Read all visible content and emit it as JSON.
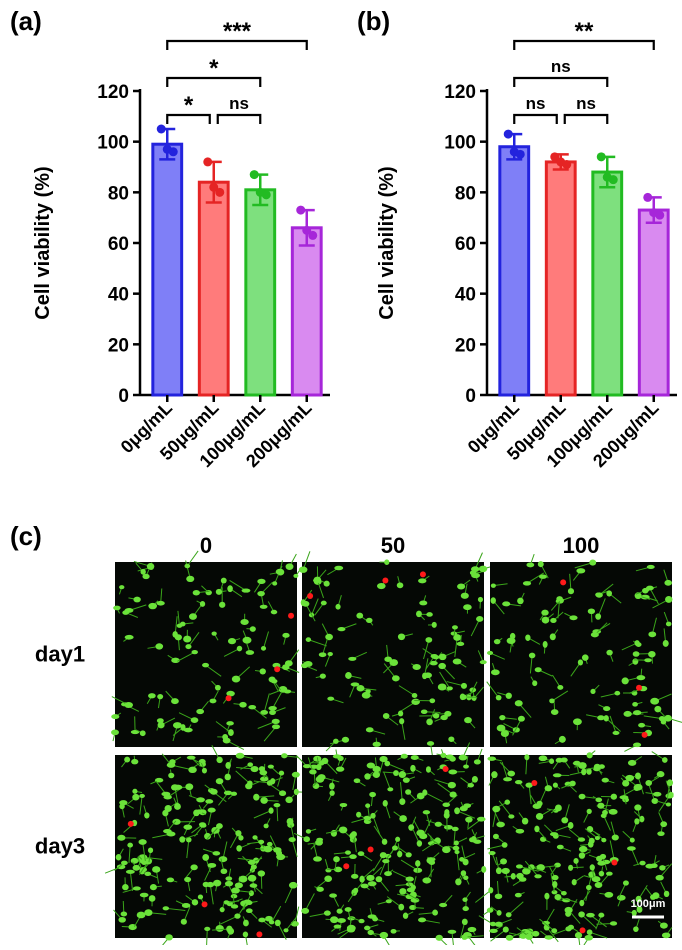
{
  "chart_data": [
    {
      "type": "bar",
      "panel_label": "(a)",
      "ylabel": "Cell viability (%)",
      "categories": [
        "0μg/mL",
        "50μg/mL",
        "100μg/mL",
        "200μg/mL"
      ],
      "values": [
        99,
        84,
        81,
        66
      ],
      "errors": [
        6,
        8,
        6,
        7
      ],
      "points": [
        [
          105,
          97,
          96
        ],
        [
          92,
          82,
          80
        ],
        [
          87,
          80,
          79
        ],
        [
          73,
          65,
          63
        ]
      ],
      "colors": [
        "#7f7ff7",
        "#ff7b7b",
        "#7ee07e",
        "#d98af0"
      ],
      "edge_colors": [
        "#2323dd",
        "#e52424",
        "#22bb22",
        "#a626d9"
      ],
      "ylim": [
        0,
        120
      ],
      "yticks": [
        0,
        20,
        40,
        60,
        80,
        100,
        120
      ],
      "comparisons": [
        {
          "from": 0,
          "to": 1,
          "label": "*"
        },
        {
          "from": 1,
          "to": 2,
          "label": "ns"
        },
        {
          "from": 0,
          "to": 2,
          "label": "*"
        },
        {
          "from": 0,
          "to": 3,
          "label": "***"
        }
      ]
    },
    {
      "type": "bar",
      "panel_label": "(b)",
      "ylabel": "Cell viability (%)",
      "categories": [
        "0μg/mL",
        "50μg/mL",
        "100μg/mL",
        "200μg/mL"
      ],
      "values": [
        98,
        92,
        88,
        73
      ],
      "errors": [
        5,
        3,
        6,
        5
      ],
      "points": [
        [
          103,
          96,
          95
        ],
        [
          94,
          92,
          91
        ],
        [
          94,
          86,
          85
        ],
        [
          78,
          72,
          71
        ]
      ],
      "colors": [
        "#7f7ff7",
        "#ff7b7b",
        "#7ee07e",
        "#d98af0"
      ],
      "edge_colors": [
        "#2323dd",
        "#e52424",
        "#22bb22",
        "#a626d9"
      ],
      "ylim": [
        0,
        120
      ],
      "yticks": [
        0,
        20,
        40,
        60,
        80,
        100,
        120
      ],
      "comparisons": [
        {
          "from": 0,
          "to": 1,
          "label": "ns"
        },
        {
          "from": 1,
          "to": 2,
          "label": "ns"
        },
        {
          "from": 0,
          "to": 2,
          "label": "ns"
        },
        {
          "from": 0,
          "to": 3,
          "label": "**"
        }
      ]
    }
  ],
  "panel_c": {
    "label": "(c)",
    "columns": [
      "0",
      "50",
      "100"
    ],
    "rows": [
      "day1",
      "day3"
    ],
    "scale_bar": "100μm"
  }
}
